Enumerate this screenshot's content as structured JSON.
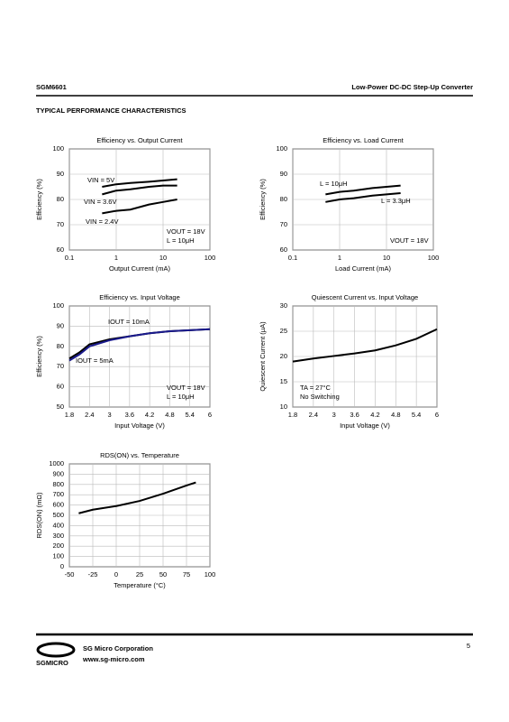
{
  "header": {
    "part": "SGM6601",
    "title": "Low-Power DC-DC Step-Up Converter",
    "section": "TYPICAL PERFORMANCE CHARACTERISTICS"
  },
  "chart_data": [
    {
      "type": "line",
      "title": "Efficiency vs. Output Current",
      "x_label": "Output Current (mA)",
      "y_label": "Efficiency (%)",
      "xscale": "log",
      "xlim": [
        0.1,
        100
      ],
      "xticks": [
        0.1,
        1,
        10,
        100
      ],
      "ylim": [
        60,
        100
      ],
      "yticks": [
        60,
        70,
        80,
        90,
        100
      ],
      "grid": true,
      "x": [
        0.5,
        1,
        2,
        5,
        10,
        20
      ],
      "series": [
        {
          "name": "VIN = 5V",
          "color": "#000000",
          "values": [
            85,
            86,
            86.5,
            87,
            87.5,
            88
          ]
        },
        {
          "name": "VIN = 3.6V",
          "color": "#000000",
          "values": [
            82,
            83.5,
            84,
            85,
            85.5,
            85.5
          ]
        },
        {
          "name": "VIN = 2.4V",
          "color": "#000000",
          "values": [
            74.5,
            75.5,
            76,
            78,
            79,
            80
          ]
        }
      ],
      "annotations": [
        "VOUT = 18V",
        "L = 10μH"
      ]
    },
    {
      "type": "line",
      "title": "Efficiency vs. Load Current",
      "x_label": "Load Current (mA)",
      "y_label": "Efficiency (%)",
      "xscale": "log",
      "xlim": [
        0.1,
        100
      ],
      "xticks": [
        0.1,
        1,
        10,
        100
      ],
      "ylim": [
        60,
        100
      ],
      "yticks": [
        60,
        70,
        80,
        90,
        100
      ],
      "grid": true,
      "x": [
        0.5,
        1,
        2,
        5,
        10,
        20
      ],
      "series": [
        {
          "name": "L = 10μH",
          "color": "#000000",
          "values": [
            82,
            83,
            83.5,
            84.5,
            85,
            85.5
          ]
        },
        {
          "name": "L = 3.3μH",
          "color": "#000000",
          "values": [
            79,
            80,
            80.5,
            81.5,
            82,
            82.5
          ]
        }
      ],
      "annotations": [
        "VOUT = 18V"
      ]
    },
    {
      "type": "line",
      "title": "Efficiency vs. Input Voltage",
      "x_label": "Input Voltage (V)",
      "y_label": "Efficiency (%)",
      "xscale": "linear",
      "xlim": [
        1.8,
        6
      ],
      "xticks": [
        1.8,
        2.4,
        3,
        3.6,
        4.2,
        4.8,
        5.4,
        6
      ],
      "ylim": [
        50,
        100
      ],
      "yticks": [
        50,
        60,
        70,
        80,
        90,
        100
      ],
      "grid": true,
      "x": [
        1.8,
        2.1,
        2.4,
        3,
        3.6,
        4.2,
        4.8,
        5.4,
        6
      ],
      "series": [
        {
          "name": "IOUT = 10mA",
          "color": "#000000",
          "values": [
            74,
            77,
            81,
            83.5,
            85,
            86.5,
            87.5,
            88,
            88.5
          ]
        },
        {
          "name": "IOUT = 5mA",
          "color": "#1a1a8c",
          "values": [
            73,
            76,
            80,
            83,
            85,
            86.5,
            87.5,
            88,
            88.5
          ]
        }
      ],
      "annotations": [
        "VOUT = 18V",
        "L = 10μH"
      ]
    },
    {
      "type": "line",
      "title": "Quiescent Current vs. Input Voltage",
      "x_label": "Input Voltage (V)",
      "y_label": "Quiescent Current (μA)",
      "xscale": "linear",
      "xlim": [
        1.8,
        6
      ],
      "xticks": [
        1.8,
        2.4,
        3,
        3.6,
        4.2,
        4.8,
        5.4,
        6
      ],
      "ylim": [
        10,
        30
      ],
      "yticks": [
        10,
        15,
        20,
        25,
        30
      ],
      "grid": true,
      "x": [
        1.8,
        2.4,
        3,
        3.6,
        4.2,
        4.8,
        5.4,
        6
      ],
      "series": [
        {
          "color": "#000000",
          "values": [
            19,
            19.6,
            20.1,
            20.6,
            21.2,
            22.2,
            23.5,
            25.4
          ]
        }
      ],
      "annotations": [
        "TA = 27°C",
        "No Switching"
      ]
    },
    {
      "type": "line",
      "title": "RDS(ON) vs. Temperature",
      "x_label": "Temperature (°C)",
      "y_label": "RDS(ON) (mΩ)",
      "xscale": "linear",
      "xlim": [
        -50,
        100
      ],
      "xticks": [
        -50,
        -25,
        0,
        25,
        50,
        75,
        100
      ],
      "ylim": [
        0,
        1000
      ],
      "yticks": [
        0,
        100,
        200,
        300,
        400,
        500,
        600,
        700,
        800,
        900,
        1000
      ],
      "grid": true,
      "x": [
        -40,
        -25,
        0,
        25,
        50,
        75,
        85
      ],
      "series": [
        {
          "color": "#000000",
          "values": [
            520,
            555,
            590,
            640,
            710,
            790,
            820
          ]
        }
      ],
      "annotations": []
    }
  ],
  "footer": {
    "logo": "SGMICRO",
    "company": "SG Micro Corporation",
    "url": "www.sg-micro.com",
    "page": "5"
  }
}
